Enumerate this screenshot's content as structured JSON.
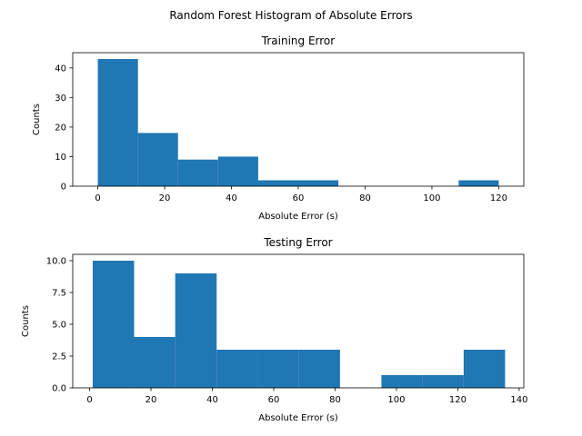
{
  "figure": {
    "title": "Random Forest Histogram of Absolute Errors"
  },
  "colors": {
    "bar": "#1f77b4",
    "axes": "#000000",
    "background": "#ffffff"
  },
  "chart_data": [
    {
      "type": "bar",
      "title": "Training Error",
      "xlabel": "Absolute Error (s)",
      "ylabel": "Counts",
      "xlim": [
        -7.5,
        127.5
      ],
      "ylim": [
        0,
        45.15
      ],
      "xticks": [
        0,
        20,
        40,
        60,
        80,
        100,
        120
      ],
      "yticks": [
        0,
        10,
        20,
        30,
        40
      ],
      "bins": [
        {
          "x0": 0,
          "x1": 12,
          "value": 43
        },
        {
          "x0": 12,
          "x1": 24,
          "value": 18
        },
        {
          "x0": 24,
          "x1": 36,
          "value": 9
        },
        {
          "x0": 36,
          "x1": 48,
          "value": 10
        },
        {
          "x0": 48,
          "x1": 60,
          "value": 2
        },
        {
          "x0": 60,
          "x1": 72,
          "value": 2
        },
        {
          "x0": 72,
          "x1": 84,
          "value": 0
        },
        {
          "x0": 84,
          "x1": 96,
          "value": 0
        },
        {
          "x0": 96,
          "x1": 108,
          "value": 0
        },
        {
          "x0": 108,
          "x1": 120,
          "value": 2
        }
      ],
      "grid": false
    },
    {
      "type": "bar",
      "title": "Testing Error",
      "xlabel": "Absolute Error (s)",
      "ylabel": "Counts",
      "xlim": [
        -5.5,
        141.5
      ],
      "ylim": [
        0,
        10.5
      ],
      "xticks": [
        0,
        20,
        40,
        60,
        80,
        100,
        120,
        140
      ],
      "yticks": [
        0.0,
        2.5,
        5.0,
        7.5,
        10.0
      ],
      "ytick_labels": [
        "0.0",
        "2.5",
        "5.0",
        "7.5",
        "10.0"
      ],
      "bins": [
        {
          "x0": 1,
          "x1": 14.5,
          "value": 10
        },
        {
          "x0": 14.5,
          "x1": 27.9,
          "value": 4
        },
        {
          "x0": 27.9,
          "x1": 41.4,
          "value": 9
        },
        {
          "x0": 41.4,
          "x1": 54.8,
          "value": 3
        },
        {
          "x0": 54.8,
          "x1": 68.2,
          "value": 3
        },
        {
          "x0": 68.2,
          "x1": 81.6,
          "value": 3
        },
        {
          "x0": 81.6,
          "x1": 95.1,
          "value": 0
        },
        {
          "x0": 95.1,
          "x1": 108.5,
          "value": 1
        },
        {
          "x0": 108.5,
          "x1": 121.9,
          "value": 1
        },
        {
          "x0": 121.9,
          "x1": 135.4,
          "value": 3
        }
      ],
      "grid": false
    }
  ]
}
